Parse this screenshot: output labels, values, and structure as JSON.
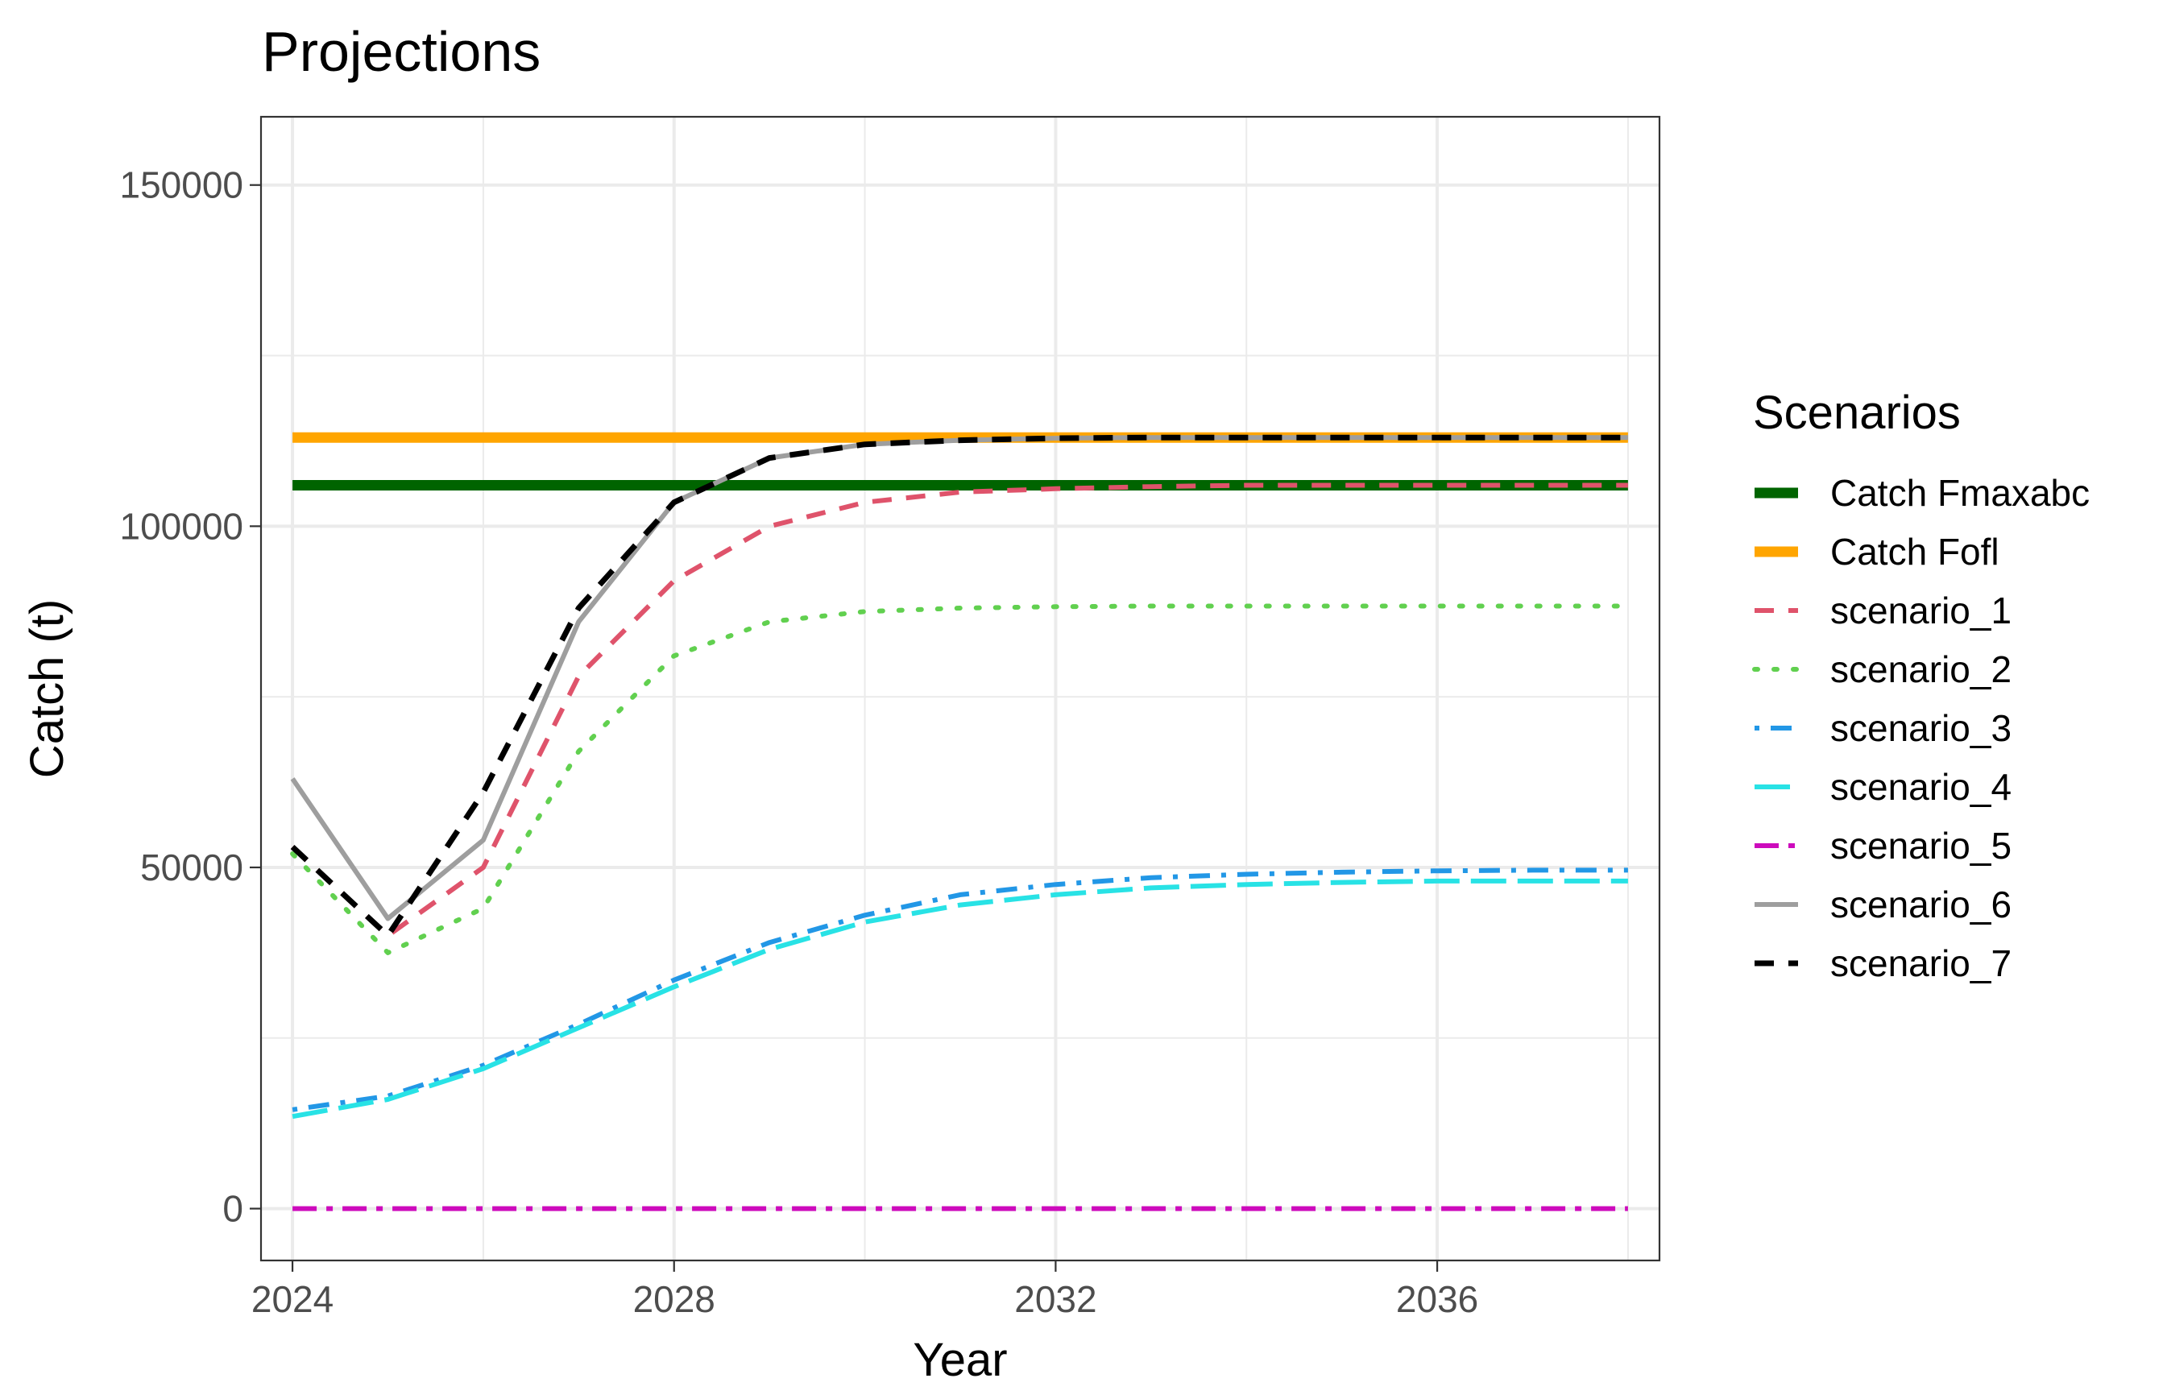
{
  "chart_data": {
    "type": "line",
    "title": "Projections",
    "xlabel": "Year",
    "ylabel": "Catch (t)",
    "xlim": [
      2023.67,
      2038.33
    ],
    "ylim": [
      -7600,
      160000
    ],
    "x_ticks": [
      2024,
      2028,
      2032,
      2036
    ],
    "y_ticks": [
      0,
      50000,
      100000,
      150000
    ],
    "grid": true,
    "legend": {
      "title": "Scenarios",
      "position": "right"
    },
    "x": [
      2024,
      2025,
      2026,
      2027,
      2028,
      2029,
      2030,
      2031,
      2032,
      2033,
      2034,
      2035,
      2036,
      2037,
      2038
    ],
    "series": [
      {
        "name": "Catch Fmaxabc",
        "color": "#006400",
        "style": "solid-thick",
        "values": [
          106000,
          106000,
          106000,
          106000,
          106000,
          106000,
          106000,
          106000,
          106000,
          106000,
          106000,
          106000,
          106000,
          106000,
          106000
        ]
      },
      {
        "name": "Catch Fofl",
        "color": "#FFA500",
        "style": "solid-thick",
        "values": [
          113000,
          113000,
          113000,
          113000,
          113000,
          113000,
          113000,
          113000,
          113000,
          113000,
          113000,
          113000,
          113000,
          113000,
          113000
        ]
      },
      {
        "name": "scenario_1",
        "color": "#DF536B",
        "style": "dashed",
        "values": [
          53000,
          40000,
          50000,
          78000,
          92000,
          100000,
          103500,
          105000,
          105500,
          105800,
          106000,
          106000,
          106000,
          106000,
          106000
        ]
      },
      {
        "name": "scenario_2",
        "color": "#61D04F",
        "style": "dotted",
        "values": [
          52000,
          37500,
          44000,
          67000,
          81000,
          86000,
          87500,
          88000,
          88200,
          88300,
          88300,
          88300,
          88300,
          88300,
          88300
        ]
      },
      {
        "name": "scenario_3",
        "color": "#2297E6",
        "style": "dotdash",
        "values": [
          14500,
          16500,
          21000,
          27000,
          33500,
          39000,
          43000,
          46000,
          47500,
          48500,
          49000,
          49300,
          49500,
          49600,
          49600
        ]
      },
      {
        "name": "scenario_4",
        "color": "#28E2E5",
        "style": "longdash",
        "values": [
          13500,
          16000,
          20500,
          26500,
          32500,
          38000,
          42000,
          44500,
          46000,
          47000,
          47500,
          47800,
          48000,
          48000,
          48000
        ]
      },
      {
        "name": "scenario_5",
        "color": "#CD0BBC",
        "style": "twodash",
        "values": [
          0,
          0,
          0,
          0,
          0,
          0,
          0,
          0,
          0,
          0,
          0,
          0,
          0,
          0,
          0
        ]
      },
      {
        "name": "scenario_6",
        "color": "#9E9E9E",
        "style": "solid",
        "values": [
          63000,
          42500,
          54000,
          86000,
          103500,
          110000,
          112000,
          112600,
          112900,
          113000,
          113000,
          113000,
          113000,
          113000,
          113000
        ]
      },
      {
        "name": "scenario_7",
        "color": "#000000",
        "style": "dashed-black",
        "values": [
          53000,
          40000,
          61000,
          88000,
          103500,
          110000,
          112000,
          112600,
          112900,
          113000,
          113000,
          113000,
          113000,
          113000,
          113000
        ]
      }
    ]
  }
}
